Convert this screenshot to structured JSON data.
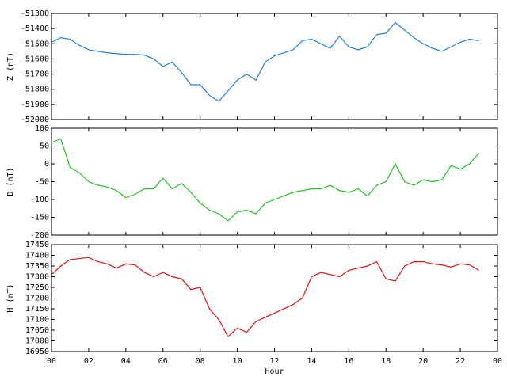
{
  "chart_data": [
    {
      "type": "line",
      "ylabel": "Z (nT)",
      "color": "#1f7fe0",
      "xlim": [
        0,
        24
      ],
      "ylim": [
        -52000,
        -51300
      ],
      "yticks": [
        -52000,
        -51900,
        -51800,
        -51700,
        -51600,
        -51500,
        -51400,
        -51300
      ],
      "x": [
        0,
        0.5,
        1,
        1.5,
        2,
        2.5,
        3,
        3.5,
        4,
        4.5,
        5,
        5.5,
        6,
        6.5,
        7,
        7.5,
        8,
        8.5,
        9,
        9.5,
        10,
        10.5,
        11,
        11.5,
        12,
        12.5,
        13,
        13.5,
        14,
        14.5,
        15,
        15.5,
        16,
        16.5,
        17,
        17.5,
        18,
        18.5,
        19,
        19.5,
        20,
        20.5,
        21,
        21.5,
        22,
        22.5,
        23
      ],
      "values": [
        -51490,
        -51460,
        -51470,
        -51510,
        -51540,
        -51550,
        -51560,
        -51565,
        -51570,
        -51570,
        -51575,
        -51600,
        -51650,
        -51620,
        -51690,
        -51770,
        -51770,
        -51840,
        -51880,
        -51810,
        -51740,
        -51700,
        -51740,
        -51620,
        -51580,
        -51560,
        -51540,
        -51480,
        -51470,
        -51500,
        -51530,
        -51450,
        -51520,
        -51540,
        -51520,
        -51440,
        -51430,
        -51360,
        -51410,
        -51460,
        -51500,
        -51530,
        -51550,
        -51520,
        -51490,
        -51470,
        -51480
      ]
    },
    {
      "type": "line",
      "ylabel": "D (nT)",
      "color": "#20c020",
      "xlim": [
        0,
        24
      ],
      "ylim": [
        -200,
        100
      ],
      "yticks": [
        -200,
        -150,
        -100,
        -50,
        0,
        50,
        100
      ],
      "x": [
        0,
        0.5,
        1,
        1.5,
        2,
        2.5,
        3,
        3.5,
        4,
        4.5,
        5,
        5.5,
        6,
        6.5,
        7,
        7.5,
        8,
        8.5,
        9,
        9.5,
        10,
        10.5,
        11,
        11.5,
        12,
        12.5,
        13,
        13.5,
        14,
        14.5,
        15,
        15.5,
        16,
        16.5,
        17,
        17.5,
        18,
        18.5,
        19,
        19.5,
        20,
        20.5,
        21,
        21.5,
        22,
        22.5,
        23
      ],
      "values": [
        60,
        70,
        -10,
        -25,
        -50,
        -60,
        -65,
        -75,
        -95,
        -85,
        -70,
        -70,
        -40,
        -70,
        -55,
        -80,
        -110,
        -130,
        -140,
        -160,
        -135,
        -130,
        -140,
        -110,
        -100,
        -90,
        -80,
        -75,
        -70,
        -70,
        -60,
        -75,
        -80,
        -70,
        -90,
        -60,
        -50,
        0,
        -50,
        -60,
        -45,
        -50,
        -45,
        -5,
        -15,
        0,
        30
      ]
    },
    {
      "type": "line",
      "ylabel": "H (nT)",
      "xlabel": "Hour",
      "color": "#e01010",
      "xlim": [
        0,
        24
      ],
      "ylim": [
        16950,
        17450
      ],
      "yticks": [
        16950,
        17000,
        17050,
        17100,
        17150,
        17200,
        17250,
        17300,
        17350,
        17400,
        17450
      ],
      "xticks": [
        {
          "value": 0,
          "label": "00"
        },
        {
          "value": 2,
          "label": "02"
        },
        {
          "value": 4,
          "label": "04"
        },
        {
          "value": 6,
          "label": "06"
        },
        {
          "value": 8,
          "label": "08"
        },
        10,
        12,
        14,
        16,
        18,
        20,
        22,
        {
          "value": 24,
          "label": "00"
        }
      ],
      "x": [
        0,
        0.5,
        1,
        1.5,
        2,
        2.5,
        3,
        3.5,
        4,
        4.5,
        5,
        5.5,
        6,
        6.5,
        7,
        7.5,
        8,
        8.5,
        9,
        9.5,
        10,
        10.5,
        11,
        11.5,
        12,
        12.5,
        13,
        13.5,
        14,
        14.5,
        15,
        15.5,
        16,
        16.5,
        17,
        17.5,
        18,
        18.5,
        19,
        19.5,
        20,
        20.5,
        21,
        21.5,
        22,
        22.5,
        23
      ],
      "values": [
        17310,
        17350,
        17380,
        17385,
        17390,
        17370,
        17360,
        17340,
        17360,
        17355,
        17320,
        17300,
        17320,
        17300,
        17290,
        17240,
        17250,
        17150,
        17100,
        17020,
        17060,
        17040,
        17090,
        17110,
        17130,
        17150,
        17170,
        17200,
        17300,
        17320,
        17310,
        17300,
        17330,
        17340,
        17350,
        17370,
        17290,
        17280,
        17350,
        17370,
        17370,
        17360,
        17355,
        17345,
        17360,
        17355,
        17330
      ]
    }
  ]
}
